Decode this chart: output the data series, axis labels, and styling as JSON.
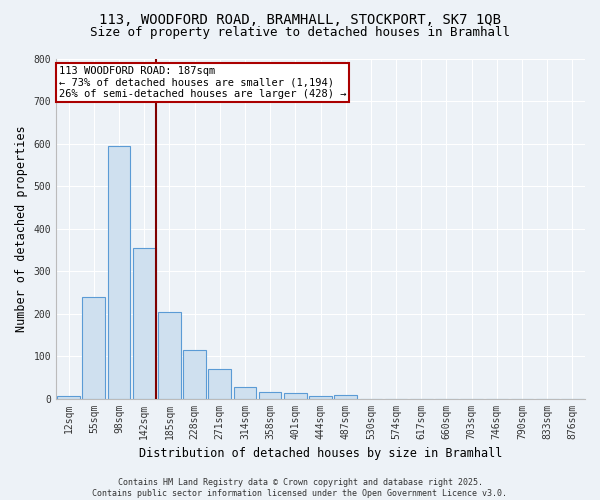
{
  "title": "113, WOODFORD ROAD, BRAMHALL, STOCKPORT, SK7 1QB",
  "subtitle": "Size of property relative to detached houses in Bramhall",
  "xlabel": "Distribution of detached houses by size in Bramhall",
  "ylabel": "Number of detached properties",
  "categories": [
    "12sqm",
    "55sqm",
    "98sqm",
    "142sqm",
    "185sqm",
    "228sqm",
    "271sqm",
    "314sqm",
    "358sqm",
    "401sqm",
    "444sqm",
    "487sqm",
    "530sqm",
    "574sqm",
    "617sqm",
    "660sqm",
    "703sqm",
    "746sqm",
    "790sqm",
    "833sqm",
    "876sqm"
  ],
  "values": [
    5,
    240,
    595,
    355,
    205,
    115,
    70,
    27,
    15,
    12,
    5,
    8,
    0,
    0,
    0,
    0,
    0,
    0,
    0,
    0,
    0
  ],
  "bar_color": "#cfe0ef",
  "bar_edge_color": "#5b9bd5",
  "vline_color": "#7f0000",
  "vline_x_index": 3,
  "annotation_text": "113 WOODFORD ROAD: 187sqm\n← 73% of detached houses are smaller (1,194)\n26% of semi-detached houses are larger (428) →",
  "annotation_box_edge_color": "#aa0000",
  "ylim": [
    0,
    800
  ],
  "yticks": [
    0,
    100,
    200,
    300,
    400,
    500,
    600,
    700,
    800
  ],
  "bg_color": "#edf2f7",
  "plot_bg_color": "#edf2f7",
  "grid_color": "#ffffff",
  "footer_text": "Contains HM Land Registry data © Crown copyright and database right 2025.\nContains public sector information licensed under the Open Government Licence v3.0.",
  "title_fontsize": 10,
  "subtitle_fontsize": 9,
  "axis_label_fontsize": 8.5,
  "tick_fontsize": 7,
  "annotation_fontsize": 7.5,
  "footer_fontsize": 6
}
